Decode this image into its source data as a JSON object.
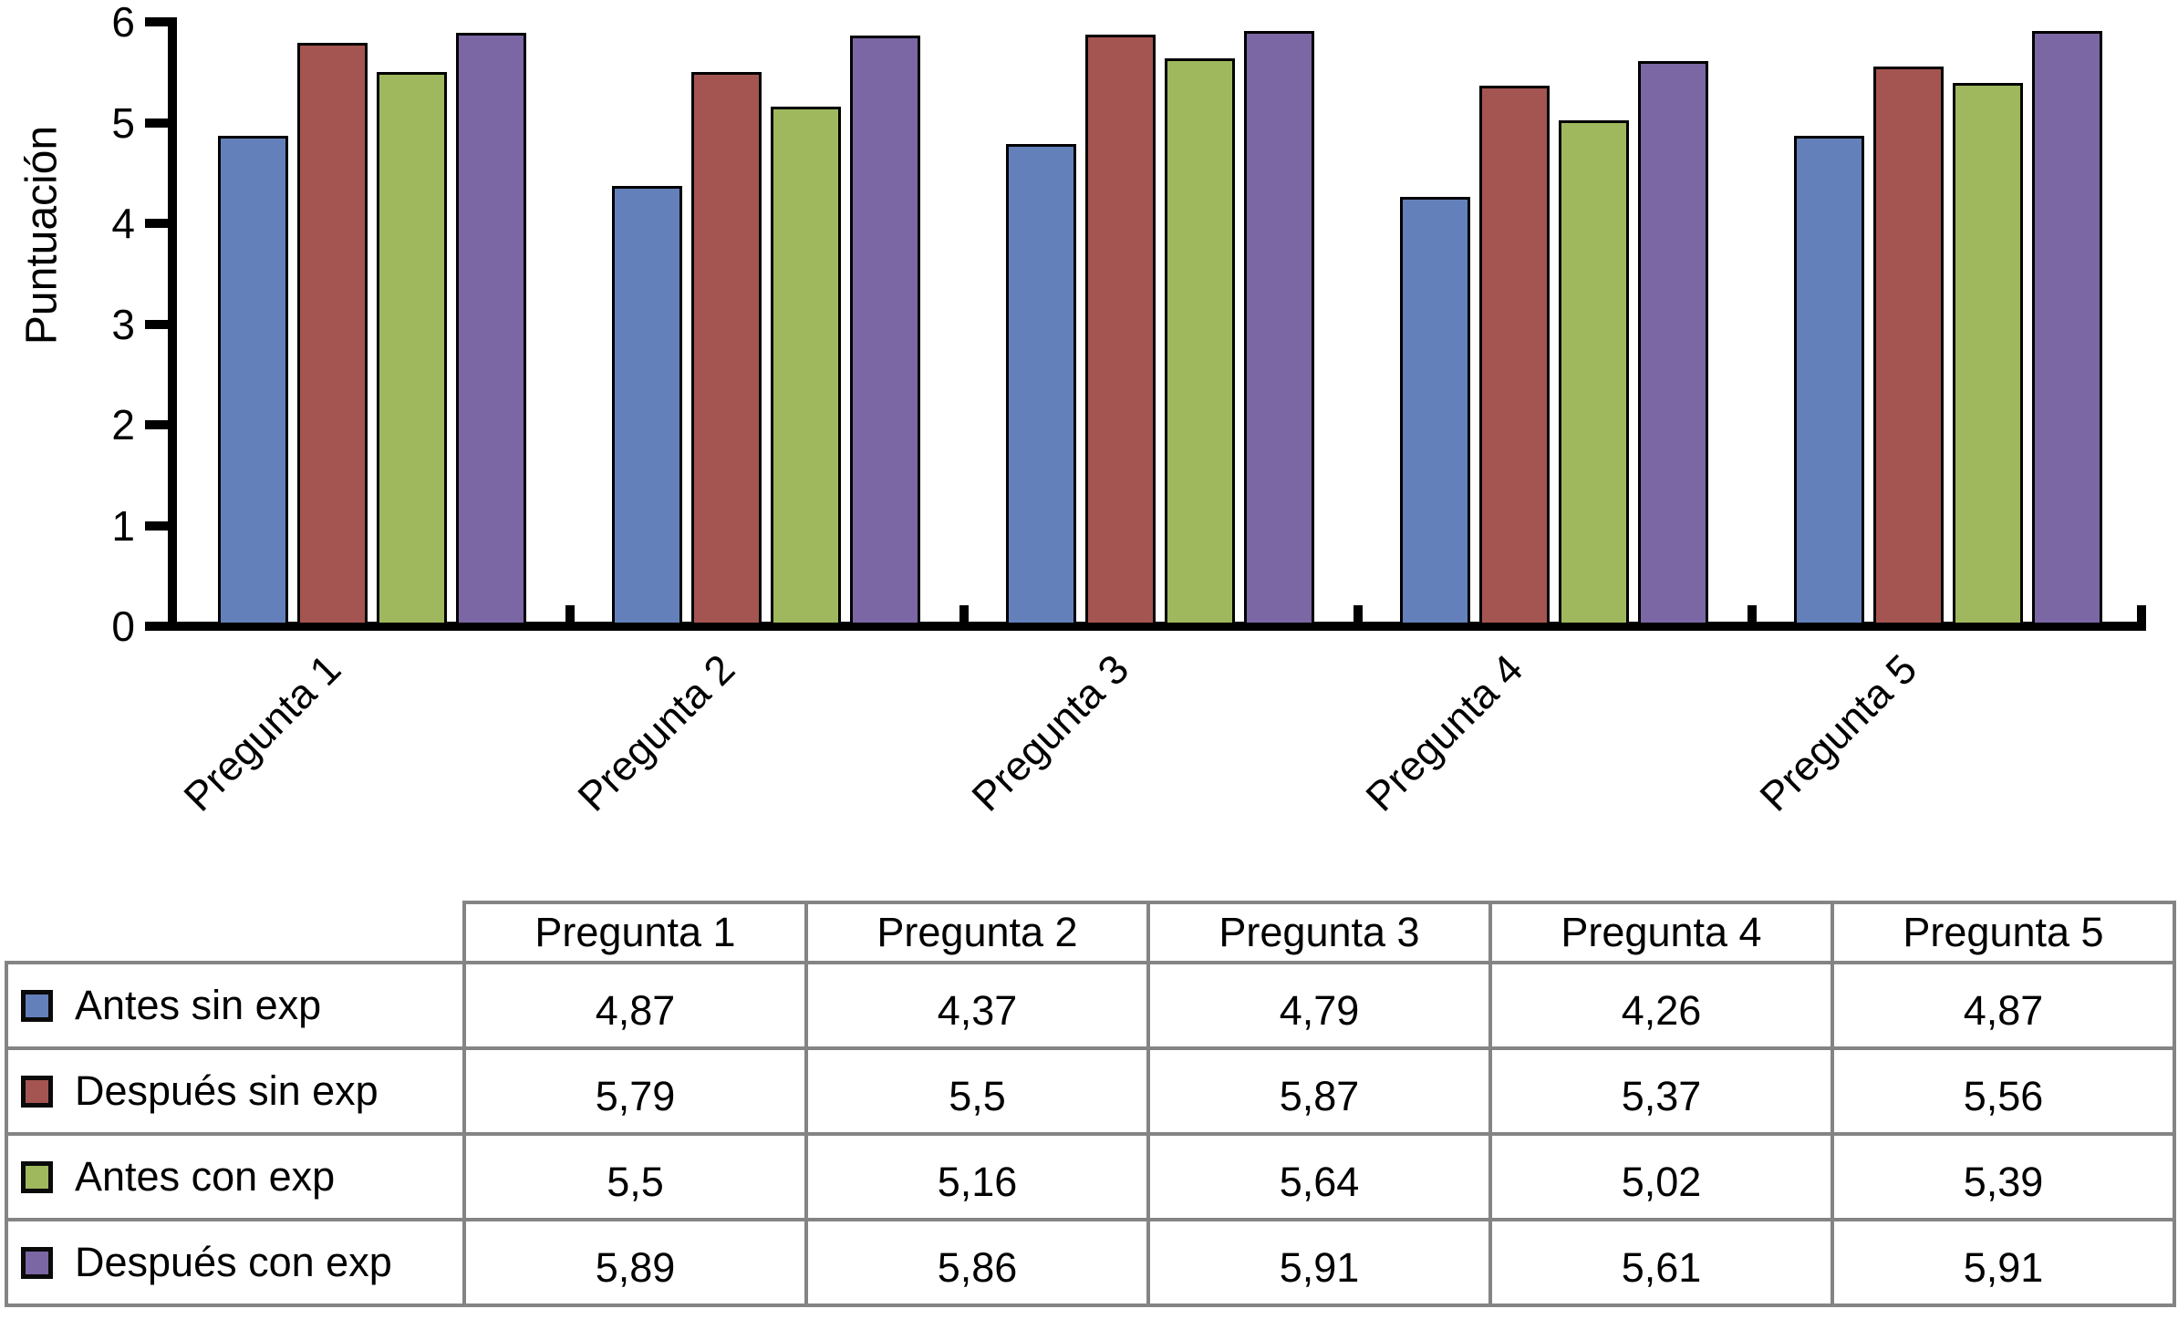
{
  "chart_data": {
    "type": "bar",
    "title": "",
    "ylabel": "Puntuación",
    "xlabel": "",
    "ylim": [
      0,
      6
    ],
    "yticks": [
      0,
      1,
      2,
      3,
      4,
      5,
      6
    ],
    "grid": false,
    "legend_position": "table-below-chart",
    "categories": [
      "Pregunta 1",
      "Pregunta 2",
      "Pregunta 3",
      "Pregunta 4",
      "Pregunta 5"
    ],
    "series": [
      {
        "name": "Antes sin exp",
        "color": "#6380BA",
        "values": [
          4.87,
          4.37,
          4.79,
          4.26,
          4.87
        ]
      },
      {
        "name": "Después sin exp",
        "color": "#A45551",
        "values": [
          5.79,
          5.5,
          5.87,
          5.37,
          5.56
        ]
      },
      {
        "name": "Antes con exp",
        "color": "#9FB85E",
        "values": [
          5.5,
          5.16,
          5.64,
          5.02,
          5.39
        ]
      },
      {
        "name": "Después con exp",
        "color": "#7A67A4",
        "values": [
          5.89,
          5.86,
          5.91,
          5.61,
          5.91
        ]
      }
    ]
  },
  "table": {
    "corner": "",
    "columns": [
      "Pregunta 1",
      "Pregunta 2",
      "Pregunta 3",
      "Pregunta 4",
      "Pregunta 5"
    ],
    "rows": [
      {
        "label": "Antes sin exp",
        "swatch_color": "#6380BA",
        "values": [
          "4,87",
          "4,37",
          "4,79",
          "4,26",
          "4,87"
        ]
      },
      {
        "label": "Después sin exp",
        "swatch_color": "#A45551",
        "values": [
          "5,79",
          "5,5",
          "5,87",
          "5,37",
          "5,56"
        ]
      },
      {
        "label": "Antes con exp",
        "swatch_color": "#9FB85E",
        "values": [
          "5,5",
          "5,16",
          "5,64",
          "5,02",
          "5,39"
        ]
      },
      {
        "label": "Después con exp",
        "swatch_color": "#7A67A4",
        "values": [
          "5,89",
          "5,86",
          "5,91",
          "5,61",
          "5,91"
        ]
      }
    ]
  },
  "style": {
    "axis_color": "#000000",
    "bar_border_color": "#000000",
    "table_border_color": "#848484",
    "background": "#FFFFFF",
    "text_color": "#000000"
  }
}
